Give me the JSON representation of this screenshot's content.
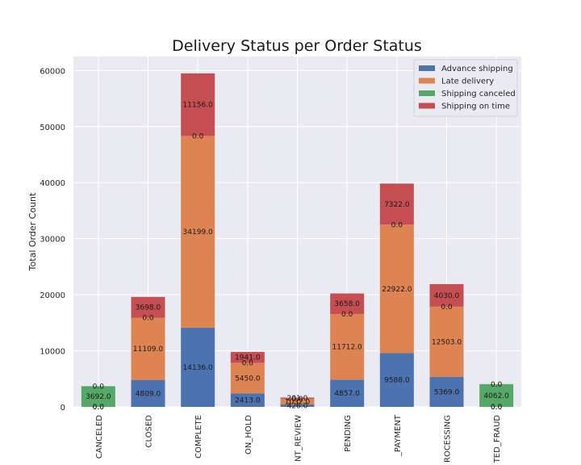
{
  "chart_data": {
    "type": "bar",
    "stacked": true,
    "title": "Delivery Status per Order Status",
    "xlabel": "",
    "ylabel": "Total Order Count",
    "ylim": [
      0,
      62500
    ],
    "yticks": [
      0,
      10000,
      20000,
      30000,
      40000,
      50000,
      60000
    ],
    "grid": true,
    "legend_position": "top-right",
    "categories": [
      "CANCELED",
      "CLOSED",
      "COMPLETE",
      "ON_HOLD",
      "PAYMENT_REVIEW",
      "PENDING",
      "PENDING_PAYMENT",
      "PROCESSING",
      "SUSPECTED_FRAUD"
    ],
    "tick_labels": [
      "CANCELED",
      "CLOSED",
      "COMPLETE",
      "ON_HOLD",
      "NT_REVIEW",
      "PENDING",
      "_PAYMENT",
      "ROCESSING",
      "TED_FRAUD"
    ],
    "series": [
      {
        "name": "Advance shipping",
        "color": "#4c72b0",
        "values": [
          0,
          4809,
          14136,
          2413,
          426,
          4857,
          9588,
          5369,
          0
        ],
        "labels": [
          "0.0",
          "4809.0",
          "14136.0",
          "2413.0",
          "426.0",
          "4857.0",
          "9588.0",
          "5369.0",
          "0.0"
        ]
      },
      {
        "name": "Late delivery",
        "color": "#dd8452",
        "values": [
          0,
          11109,
          34199,
          5450,
          1032,
          11712,
          22922,
          12503,
          0
        ],
        "labels": [
          "0.0",
          "11109.0",
          "34199.0",
          "5450.0",
          "1032.0",
          "11712.0",
          "22922.0",
          "12503.0",
          "0.0"
        ]
      },
      {
        "name": "Shipping canceled",
        "color": "#55a868",
        "values": [
          3692,
          0,
          0,
          0,
          0,
          0,
          0,
          0,
          4062
        ],
        "labels": [
          "3692.0",
          "0.0",
          "0.0",
          "0.0",
          "0.0",
          "0.0",
          "0.0",
          "0.0",
          "4062.0"
        ]
      },
      {
        "name": "Shipping on time",
        "color": "#c44e52",
        "values": [
          0,
          3698,
          11156,
          1941,
          201,
          3658,
          7322,
          4030,
          0
        ],
        "labels": [
          "0.0",
          "3698.0",
          "11156.0",
          "1941.0",
          "201.0",
          "3658.0",
          "7322.0",
          "4030.0",
          "0.0"
        ]
      }
    ],
    "colors": {
      "plot_bg": "#eaeaf2",
      "grid": "#ffffff"
    }
  }
}
